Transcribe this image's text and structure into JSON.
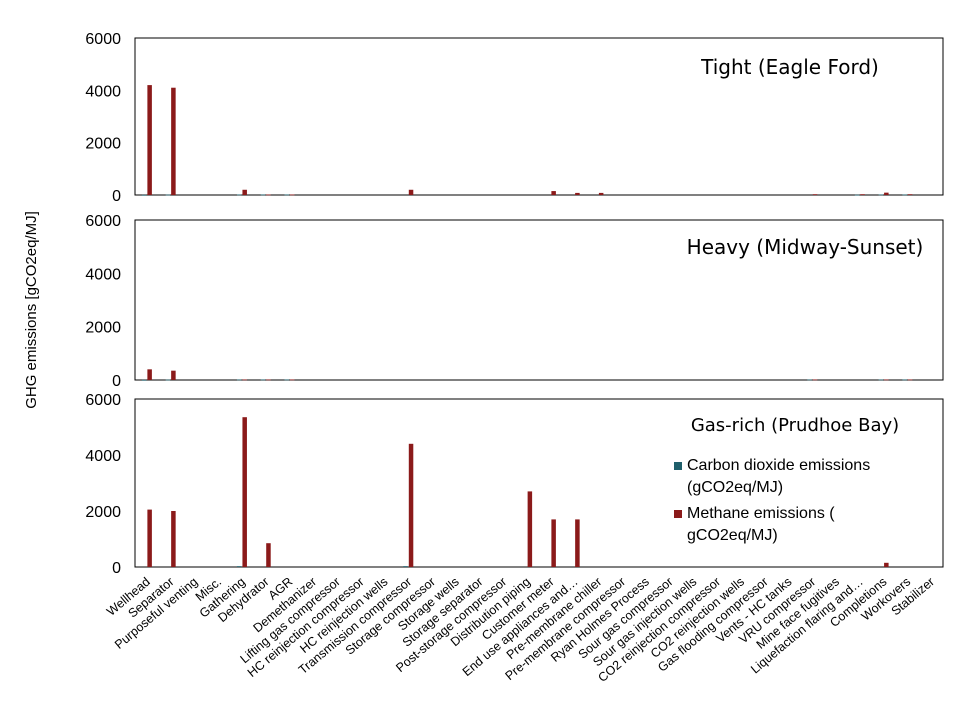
{
  "figure": {
    "ylabel": "GHG emissions [gCO2eq/MJ]"
  },
  "colors": {
    "co2": "#1f5f6b",
    "methane": "#8b1a1a",
    "panel_border": "#000000",
    "background": "#ffffff"
  },
  "chart_data": [
    {
      "type": "bar",
      "title": "Tight (Eagle Ford)",
      "ylim": [
        0,
        6000
      ],
      "yticks": [
        0,
        2000,
        4000,
        6000
      ],
      "categories": [
        "Wellhead",
        "Separator",
        "Purposeful venting",
        "Misc.",
        "Gathering",
        "Dehydrator",
        "AGR",
        "Demethanizer",
        "Lifting gas compressor",
        "HC reinjection compressor",
        "HC reinjection wells",
        "Transmission compressor",
        "Storage compressor",
        "Storage wells",
        "Storage separator",
        "Post-storage compressor",
        "Distribution piping",
        "Customer meter",
        "End use appliances and…",
        "Pre-membrane chiller",
        "Pre-membrane compressor",
        "Ryan Holmes Process",
        "Sour gas compressor",
        "Sour gas injection wells",
        "CO2 reinjection compressor",
        "CO2 reinjection wells",
        "Gas flooding compressor",
        "Vents - HC tanks",
        "VRU compressor",
        "Mine face fugitives",
        "Liquefaction flaring and…",
        "Completions",
        "Workovers",
        "Stabilizer"
      ],
      "series": [
        {
          "name": "Carbon dioxide emissions (gCO2eq/MJ)",
          "values": [
            5,
            15,
            0,
            0,
            20,
            20,
            20,
            0,
            0,
            0,
            0,
            0,
            0,
            0,
            0,
            0,
            0,
            0,
            0,
            0,
            0,
            0,
            0,
            0,
            0,
            0,
            0,
            0,
            0,
            0,
            10,
            20,
            20,
            0
          ]
        },
        {
          "name": "Methane emissions ( gCO2eq/MJ)",
          "values": [
            4200,
            4100,
            0,
            0,
            200,
            20,
            20,
            0,
            0,
            0,
            0,
            200,
            0,
            0,
            0,
            0,
            0,
            150,
            80,
            80,
            0,
            0,
            0,
            0,
            0,
            0,
            0,
            0,
            30,
            0,
            30,
            90,
            30,
            0
          ]
        }
      ]
    },
    {
      "type": "bar",
      "title": "Heavy (Midway-Sunset)",
      "ylim": [
        0,
        6000
      ],
      "yticks": [
        0,
        2000,
        4000,
        6000
      ],
      "categories": [
        "Wellhead",
        "Separator",
        "Purposeful venting",
        "Misc.",
        "Gathering",
        "Dehydrator",
        "AGR",
        "Demethanizer",
        "Lifting gas compressor",
        "HC reinjection compressor",
        "HC reinjection wells",
        "Transmission compressor",
        "Storage compressor",
        "Storage wells",
        "Storage separator",
        "Post-storage compressor",
        "Distribution piping",
        "Customer meter",
        "End use appliances and…",
        "Pre-membrane chiller",
        "Pre-membrane compressor",
        "Ryan Holmes Process",
        "Sour gas compressor",
        "Sour gas injection wells",
        "CO2 reinjection compressor",
        "CO2 reinjection wells",
        "Gas flooding compressor",
        "Vents - HC tanks",
        "VRU compressor",
        "Mine face fugitives",
        "Liquefaction flaring and…",
        "Completions",
        "Workovers",
        "Stabilizer"
      ],
      "series": [
        {
          "name": "Carbon dioxide emissions (gCO2eq/MJ)",
          "values": [
            5,
            15,
            0,
            0,
            20,
            20,
            20,
            0,
            0,
            0,
            0,
            0,
            0,
            0,
            0,
            0,
            0,
            0,
            0,
            0,
            0,
            0,
            0,
            0,
            0,
            0,
            0,
            0,
            20,
            0,
            0,
            20,
            20,
            0
          ]
        },
        {
          "name": "Methane emissions ( gCO2eq/MJ)",
          "values": [
            400,
            350,
            0,
            0,
            20,
            20,
            20,
            0,
            0,
            0,
            0,
            0,
            0,
            0,
            0,
            0,
            0,
            0,
            0,
            0,
            0,
            0,
            0,
            0,
            0,
            0,
            0,
            0,
            20,
            0,
            0,
            20,
            20,
            0
          ]
        }
      ]
    },
    {
      "type": "bar",
      "title": "Gas-rich (Prudhoe Bay)",
      "ylim": [
        0,
        6000
      ],
      "yticks": [
        0,
        2000,
        4000,
        6000
      ],
      "categories": [
        "Wellhead",
        "Separator",
        "Purposeful venting",
        "Misc.",
        "Gathering",
        "Dehydrator",
        "AGR",
        "Demethanizer",
        "Lifting gas compressor",
        "HC reinjection compressor",
        "HC reinjection wells",
        "Transmission compressor",
        "Storage compressor",
        "Storage wells",
        "Storage separator",
        "Post-storage compressor",
        "Distribution piping",
        "Customer meter",
        "End use appliances and…",
        "Pre-membrane chiller",
        "Pre-membrane compressor",
        "Ryan Holmes Process",
        "Sour gas compressor",
        "Sour gas injection wells",
        "CO2 reinjection compressor",
        "CO2 reinjection wells",
        "Gas flooding compressor",
        "Vents - HC tanks",
        "VRU compressor",
        "Mine face fugitives",
        "Liquefaction flaring and…",
        "Completions",
        "Workovers",
        "Stabilizer"
      ],
      "series": [
        {
          "name": "Carbon dioxide emissions (gCO2eq/MJ)",
          "values": [
            0,
            0,
            0,
            0,
            30,
            0,
            0,
            0,
            0,
            0,
            0,
            30,
            0,
            0,
            0,
            0,
            0,
            0,
            0,
            0,
            0,
            0,
            0,
            0,
            0,
            0,
            0,
            0,
            0,
            0,
            0,
            0,
            0,
            0
          ]
        },
        {
          "name": "Methane emissions ( gCO2eq/MJ)",
          "values": [
            2050,
            2000,
            0,
            0,
            5350,
            850,
            0,
            0,
            0,
            0,
            0,
            4400,
            0,
            0,
            0,
            0,
            2700,
            1700,
            1700,
            0,
            0,
            0,
            0,
            0,
            0,
            0,
            0,
            0,
            0,
            0,
            0,
            150,
            0,
            0
          ]
        }
      ],
      "legend": {
        "position": "right",
        "entries": [
          "Carbon dioxide emissions (gCO2eq/MJ)",
          "Methane emissions ( gCO2eq/MJ)"
        ]
      }
    }
  ]
}
